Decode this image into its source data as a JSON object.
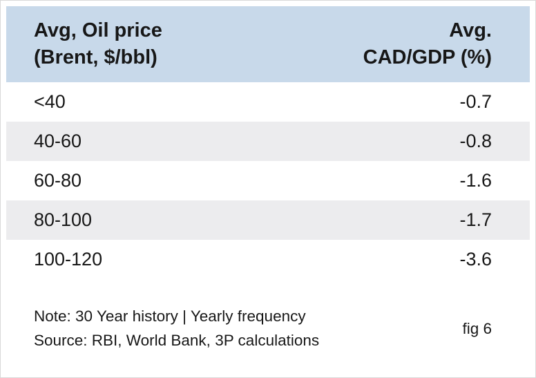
{
  "chart_data": {
    "type": "table",
    "columns": [
      "Avg, Oil price (Brent, $/bbl)",
      "Avg. CAD/GDP (%)"
    ],
    "rows": [
      [
        "<40",
        "-0.7"
      ],
      [
        "40-60",
        "-0.8"
      ],
      [
        "60-80",
        "-1.6"
      ],
      [
        "80-100",
        "-1.7"
      ],
      [
        "100-120",
        "-3.6"
      ]
    ],
    "note": "Note: 30 Year history | Yearly frequency",
    "source": "Source: RBI, World Bank, 3P calculations",
    "figure_label": "fig 6"
  },
  "header": {
    "left_line1": "Avg, Oil price",
    "left_line2": "(Brent, $/bbl)",
    "right_line1": "Avg.",
    "right_line2": "CAD/GDP (%)"
  },
  "colors": {
    "header_bg": "#c8d9ea",
    "stripe_bg": "#ececee",
    "text_color": "#171717"
  }
}
